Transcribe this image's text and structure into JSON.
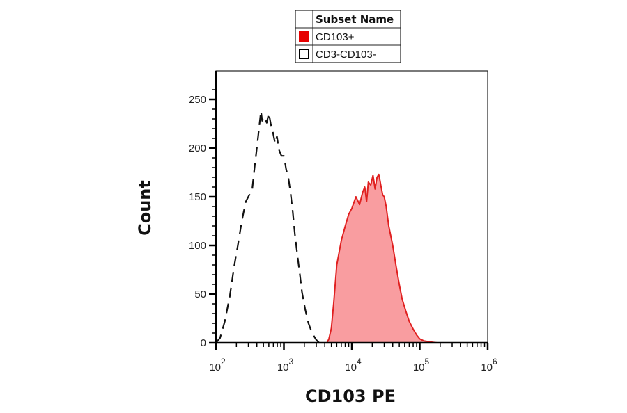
{
  "chart_data": {
    "type": "area",
    "title": "",
    "xlabel": "CD103 PE",
    "ylabel": "Count",
    "x_scale": "log",
    "xlim": [
      100,
      1000000
    ],
    "ylim": [
      0,
      260
    ],
    "x_ticks": [
      {
        "base": "10",
        "exp": "2",
        "value": 100
      },
      {
        "base": "10",
        "exp": "3",
        "value": 1000
      },
      {
        "base": "10",
        "exp": "4",
        "value": 10000
      },
      {
        "base": "10",
        "exp": "5",
        "value": 100000
      },
      {
        "base": "10",
        "exp": "6",
        "value": 1000000
      }
    ],
    "y_ticks": [
      "0",
      "50",
      "100",
      "150",
      "200",
      "250"
    ],
    "legend": {
      "position": "top-center",
      "header": "Subset Name",
      "entries": [
        {
          "name": "CD103+",
          "swatch": "#e60000",
          "style": "filled"
        },
        {
          "name": "CD3-CD103-",
          "swatch": "#ffffff",
          "style": "dashed"
        }
      ]
    },
    "series": [
      {
        "name": "CD103+",
        "color": "#e02020",
        "fill": "#f99da0",
        "style": "filled",
        "x": [
          100,
          4300,
          4600,
          5000,
          5400,
          6000,
          7000,
          8000,
          9000,
          10000,
          11500,
          13000,
          14500,
          15500,
          16500,
          17500,
          19000,
          20500,
          22000,
          23500,
          25000,
          27000,
          28500,
          30000,
          32000,
          35000,
          40000,
          45000,
          50000,
          55000,
          62000,
          70000,
          80000,
          90000,
          100000,
          115000,
          140000,
          180000,
          1000000
        ],
        "y": [
          0,
          0,
          4,
          15,
          40,
          80,
          105,
          120,
          132,
          138,
          150,
          142,
          155,
          160,
          145,
          165,
          162,
          172,
          158,
          170,
          173,
          160,
          152,
          150,
          140,
          120,
          100,
          78,
          60,
          45,
          33,
          22,
          14,
          8,
          4,
          2,
          1,
          0,
          0
        ]
      },
      {
        "name": "CD3-CD103-",
        "color": "#111111",
        "style": "dashed",
        "x": [
          100,
          115,
          135,
          160,
          185,
          210,
          240,
          275,
          310,
          340,
          370,
          400,
          430,
          460,
          480,
          520,
          560,
          600,
          640,
          690,
          740,
          790,
          850,
          920,
          1000,
          1080,
          1160,
          1250,
          1350,
          1450,
          1580,
          1720,
          1850,
          2050,
          2300,
          2600,
          3000,
          3300
        ],
        "y": [
          0,
          5,
          22,
          48,
          78,
          100,
          125,
          145,
          152,
          156,
          180,
          200,
          220,
          238,
          228,
          232,
          226,
          236,
          225,
          216,
          205,
          212,
          198,
          192,
          192,
          178,
          170,
          155,
          135,
          112,
          90,
          70,
          52,
          35,
          20,
          10,
          3,
          0
        ]
      }
    ]
  }
}
